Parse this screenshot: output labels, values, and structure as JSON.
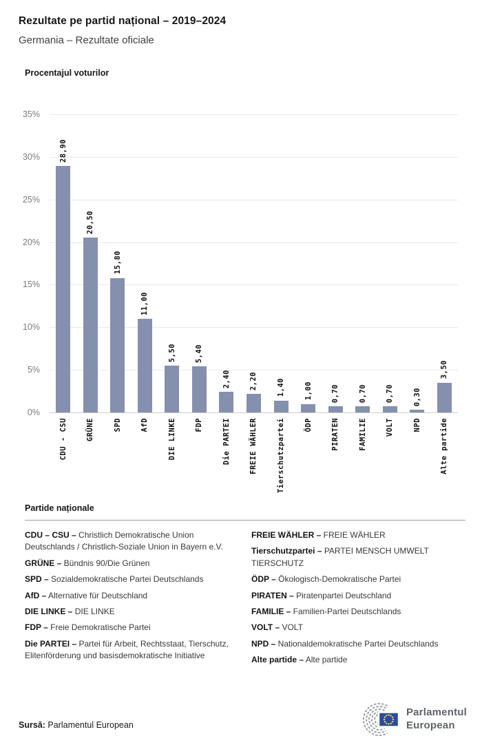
{
  "page": {
    "title": "Rezultate pe partid național – 2019–2024",
    "subtitle": "Germania – Rezultate oficiale"
  },
  "chart_data": {
    "type": "bar",
    "title": "Procentajul voturilor",
    "categories": [
      "CDU - CSU",
      "GRÜNE",
      "SPD",
      "AfD",
      "DIE LINKE",
      "FDP",
      "Die PARTEI",
      "FREIE WÄHLER",
      "Tierschutzpartei",
      "ÖDP",
      "PIRATEN",
      "FAMILIE",
      "VOLT",
      "NPD",
      "Alte partide"
    ],
    "values": [
      28.9,
      20.5,
      15.8,
      11.0,
      5.5,
      5.4,
      2.4,
      2.2,
      1.4,
      1.0,
      0.7,
      0.7,
      0.7,
      0.3,
      3.5
    ],
    "value_labels": [
      "28,90",
      "20,50",
      "15,80",
      "11,00",
      "5,50",
      "5,40",
      "2,40",
      "2,20",
      "1,40",
      "1,00",
      "0,70",
      "0,70",
      "0,70",
      "0,30",
      "3,50"
    ],
    "y_ticks": [
      "35%",
      "30%",
      "25%",
      "20%",
      "15%",
      "10%",
      "5%",
      "0%"
    ],
    "ylim": [
      0,
      35
    ],
    "xlabel": "",
    "ylabel": "Procentajul voturilor",
    "grid": true,
    "legend_position": "none",
    "bar_color": "#8590AE"
  },
  "legend": {
    "heading": "Partide naționale",
    "left": [
      {
        "abbr": "CDU – CSU –",
        "name": "Christlich Demokratische Union Deutschlands / Christlich-Soziale Union in Bayern e.V."
      },
      {
        "abbr": "GRÜNE –",
        "name": "Bündnis 90/Die Grünen"
      },
      {
        "abbr": "SPD –",
        "name": "Sozialdemokratische Partei Deutschlands"
      },
      {
        "abbr": "AfD –",
        "name": "Alternative für Deutschland"
      },
      {
        "abbr": "DIE LINKE –",
        "name": "DIE LINKE"
      },
      {
        "abbr": "FDP –",
        "name": "Freie Demokratische Partei"
      },
      {
        "abbr": "Die PARTEI –",
        "name": "Partei für Arbeit, Rechtsstaat, Tierschutz, Elitenförderung und basisdemokratische Initiative"
      }
    ],
    "right": [
      {
        "abbr": "FREIE WÄHLER –",
        "name": "FREIE WÄHLER"
      },
      {
        "abbr": "Tierschutzpartei –",
        "name": "PARTEI MENSCH UMWELT TIERSCHUTZ"
      },
      {
        "abbr": "ÖDP –",
        "name": "Ökologisch-Demokratische Partei"
      },
      {
        "abbr": "PIRATEN –",
        "name": "Piratenpartei Deutschland"
      },
      {
        "abbr": "FAMILIE –",
        "name": "Familien-Partei Deutschlands"
      },
      {
        "abbr": "VOLT –",
        "name": "VOLT"
      },
      {
        "abbr": "NPD –",
        "name": "Nationaldemokratische Partei Deutschlands"
      },
      {
        "abbr": "Alte partide –",
        "name": "Alte partide"
      }
    ]
  },
  "footer": {
    "source_label": "Sursă:",
    "source_text": "Parlamentul European"
  },
  "logo": {
    "line1": "Parlamentul",
    "line2": "European",
    "colors": {
      "hemicycle_gray": "#9BA0A6",
      "flag_blue": "#2A4B9C",
      "star_yellow": "#FFD617",
      "text_gray": "#5F6368"
    }
  }
}
